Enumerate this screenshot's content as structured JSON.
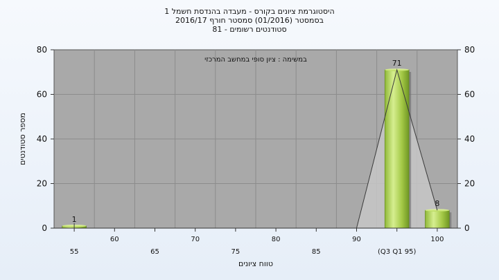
{
  "title_lines": [
    "היסטוגרמת ציונים בקורס - מעבדה בהנדסת חשמל 1",
    "בסמסטר  (01/2016)  סמסטר חורף 2016/17",
    "סטודנטים רשומים - 81"
  ],
  "chart_data": {
    "type": "bar",
    "categories": [
      "55",
      "60",
      "65",
      "70",
      "75",
      "80",
      "85",
      "90",
      "95",
      "100"
    ],
    "values": [
      1,
      0,
      0,
      0,
      0,
      0,
      0,
      0,
      71,
      8
    ],
    "xtick_labels": [
      "55",
      "60",
      "65",
      "70",
      "75",
      "80",
      "85",
      "90",
      "(Q3 Q1 95)",
      "100"
    ],
    "xlabel": "טווח ציונים",
    "ylabel": "מספר סטודנטים",
    "ylim": [
      0,
      80
    ],
    "yticks": [
      0,
      20,
      40,
      60,
      80
    ],
    "annotation": "במשימה : ציון סופי במחשב המרכזי",
    "grid": true,
    "legend": "none",
    "colors": {
      "plot_bg": "#a9a9a9",
      "bar_light": "#d4ec8a",
      "bar_mid": "#a8cc4a",
      "bar_dark": "#6f9623",
      "grid": "#8a8a8a",
      "area": "#c4c4c4"
    }
  }
}
